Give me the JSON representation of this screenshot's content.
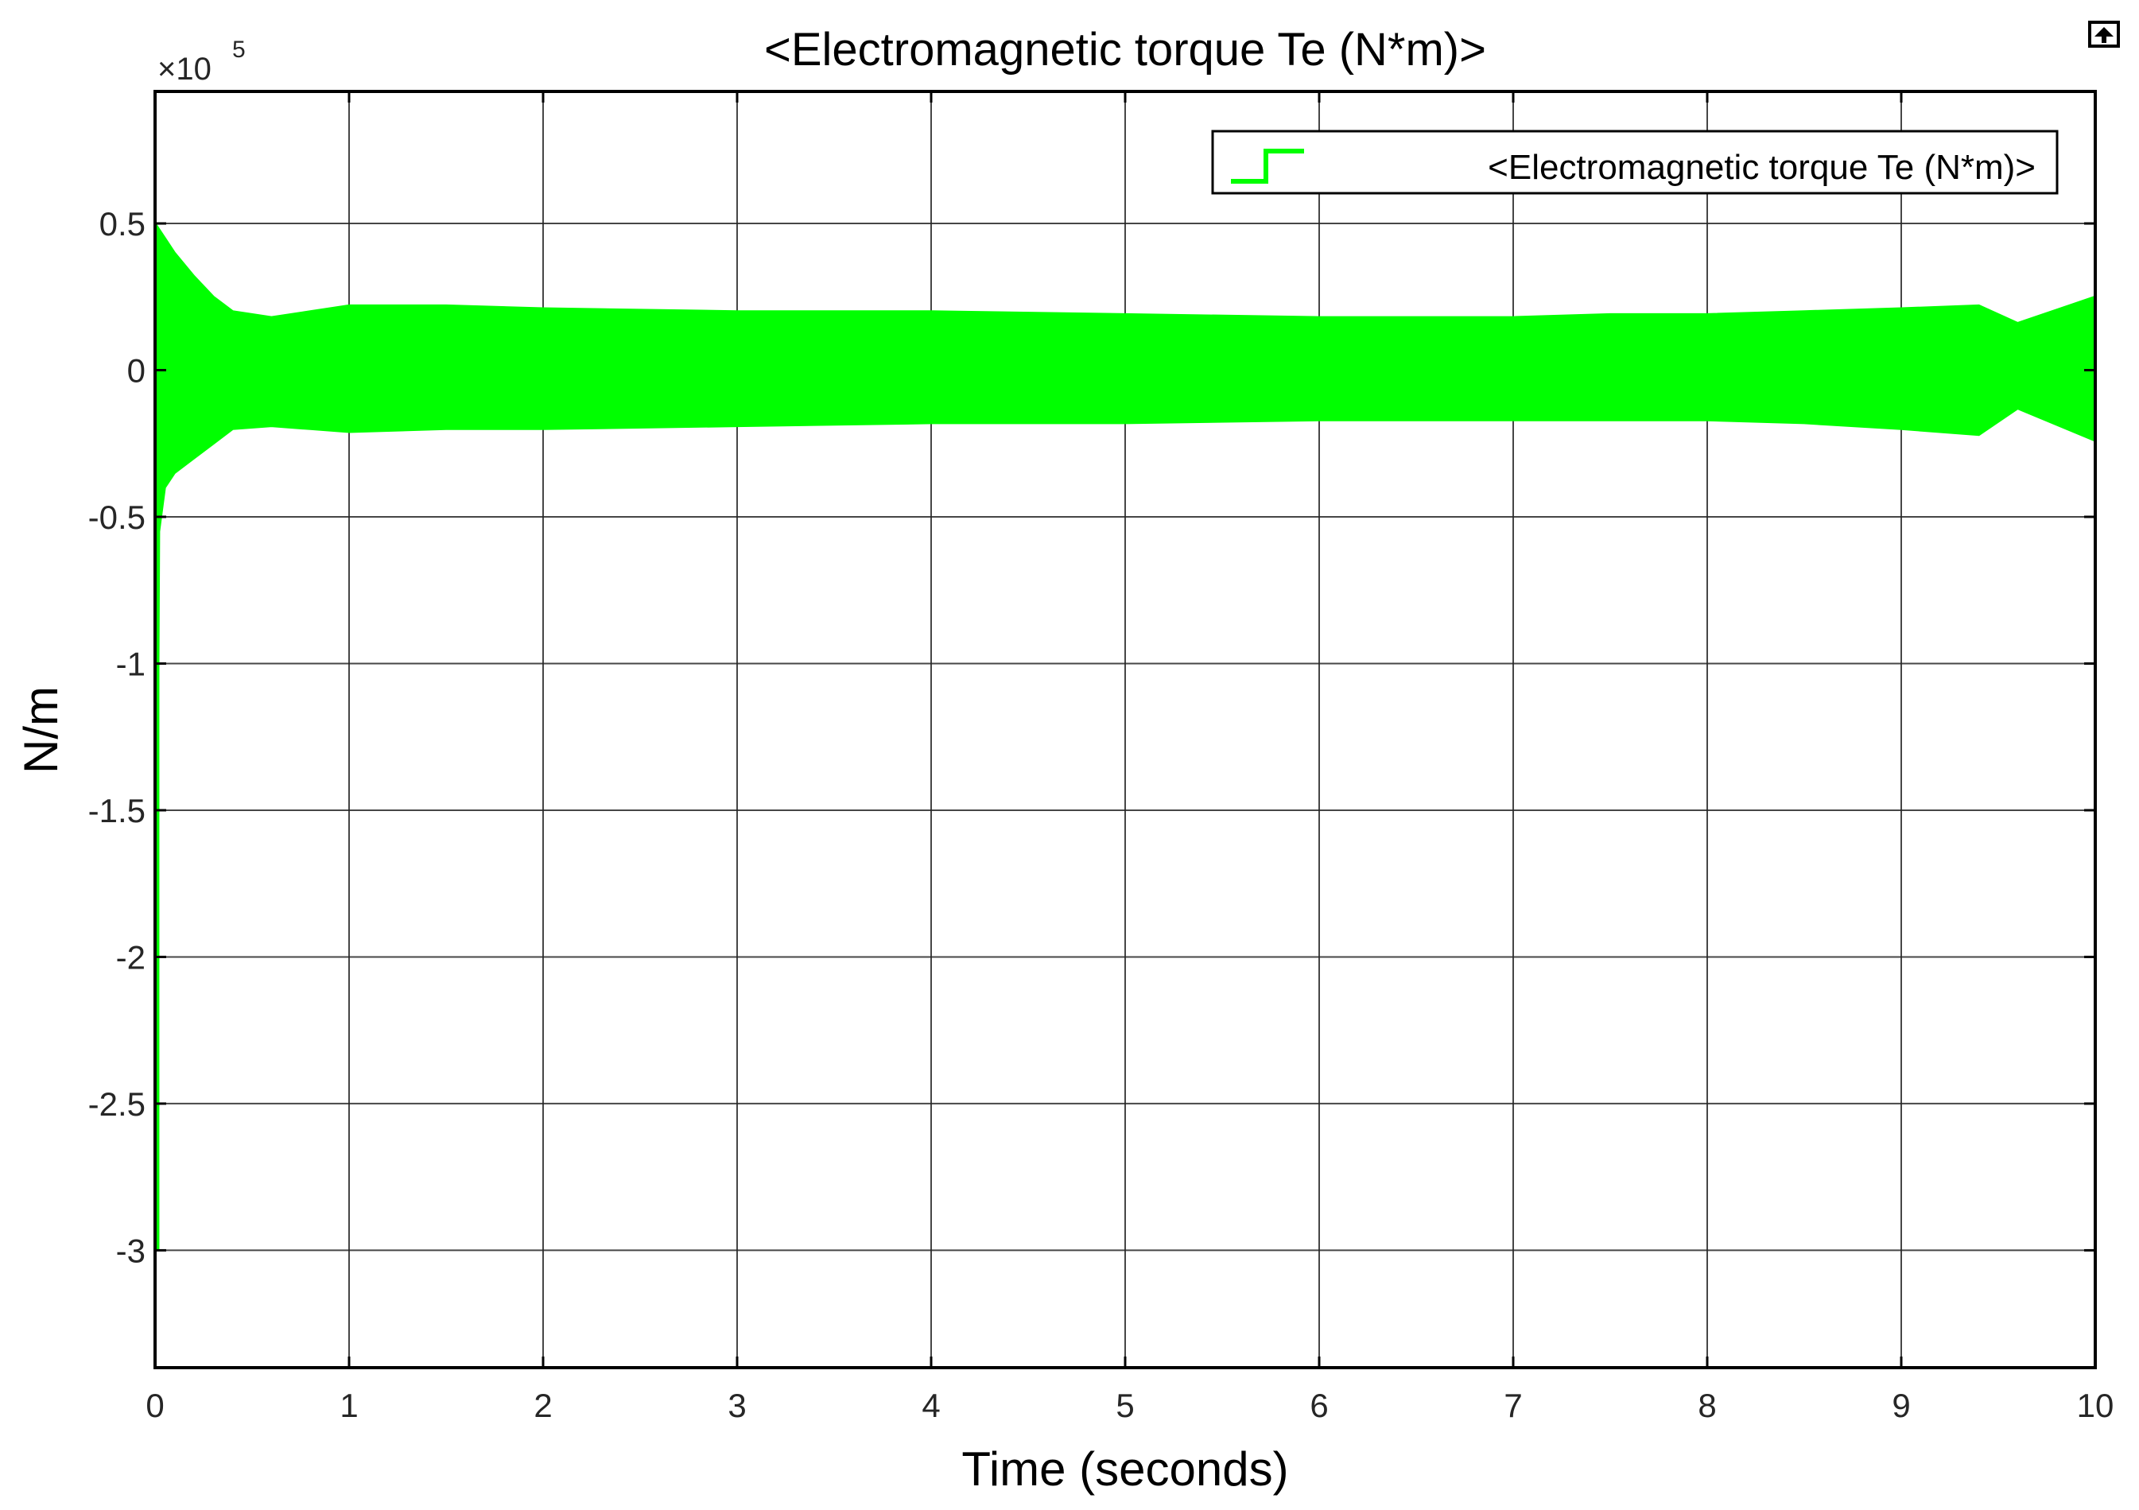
{
  "chart_data": {
    "type": "line",
    "title": "<Electromagnetic torque Te (N*m)>",
    "xlabel": "Time (seconds)",
    "ylabel": "N/m",
    "y_multiplier": "×10",
    "y_multiplier_exponent": "5",
    "xlim": [
      0,
      10
    ],
    "ylim": [
      -3.4,
      0.95
    ],
    "x_ticks": [
      0,
      1,
      2,
      3,
      4,
      5,
      6,
      7,
      8,
      9,
      10
    ],
    "x_tick_labels": [
      "0",
      "1",
      "2",
      "3",
      "4",
      "5",
      "6",
      "7",
      "8",
      "9",
      "10"
    ],
    "y_ticks": [
      0.5,
      0,
      -0.5,
      -1,
      -1.5,
      -2,
      -2.5,
      -3
    ],
    "y_tick_labels": [
      "0.5",
      "0",
      "-0.5",
      "-1",
      "-1.5",
      "-2",
      "-2.5",
      "-3"
    ],
    "grid": true,
    "legend_position": "top-right",
    "series": [
      {
        "name": "<Electromagnetic torque Te (N*m)>",
        "color": "#00ff00",
        "style": "oscillating band",
        "upper_envelope": [
          [
            0.0,
            0.5
          ],
          [
            0.05,
            0.45
          ],
          [
            0.1,
            0.4
          ],
          [
            0.2,
            0.32
          ],
          [
            0.3,
            0.25
          ],
          [
            0.4,
            0.2
          ],
          [
            0.6,
            0.18
          ],
          [
            0.8,
            0.2
          ],
          [
            1.0,
            0.22
          ],
          [
            1.5,
            0.22
          ],
          [
            2.0,
            0.21
          ],
          [
            3.0,
            0.2
          ],
          [
            4.0,
            0.2
          ],
          [
            5.0,
            0.19
          ],
          [
            6.0,
            0.18
          ],
          [
            7.0,
            0.18
          ],
          [
            7.5,
            0.19
          ],
          [
            8.0,
            0.19
          ],
          [
            8.5,
            0.2
          ],
          [
            9.0,
            0.21
          ],
          [
            9.4,
            0.22
          ],
          [
            9.6,
            0.16
          ],
          [
            10.0,
            0.25
          ]
        ],
        "lower_envelope": [
          [
            0.0,
            -3.0
          ],
          [
            0.02,
            -0.55
          ],
          [
            0.05,
            -0.4
          ],
          [
            0.1,
            -0.35
          ],
          [
            0.2,
            -0.3
          ],
          [
            0.3,
            -0.25
          ],
          [
            0.4,
            -0.2
          ],
          [
            0.6,
            -0.19
          ],
          [
            0.8,
            -0.2
          ],
          [
            1.0,
            -0.21
          ],
          [
            1.5,
            -0.2
          ],
          [
            2.0,
            -0.2
          ],
          [
            3.0,
            -0.19
          ],
          [
            4.0,
            -0.18
          ],
          [
            5.0,
            -0.18
          ],
          [
            6.0,
            -0.17
          ],
          [
            7.0,
            -0.17
          ],
          [
            7.5,
            -0.17
          ],
          [
            8.0,
            -0.17
          ],
          [
            8.5,
            -0.18
          ],
          [
            9.0,
            -0.2
          ],
          [
            9.4,
            -0.22
          ],
          [
            9.6,
            -0.13
          ],
          [
            10.0,
            -0.24
          ]
        ]
      }
    ]
  },
  "figure": {
    "export_icon": "export-icon"
  }
}
